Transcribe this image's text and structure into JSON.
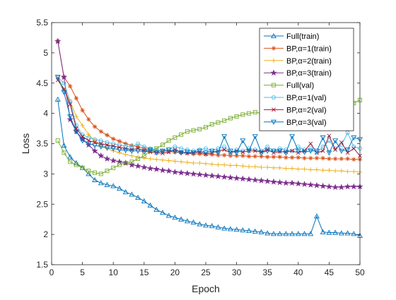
{
  "chart_data": {
    "type": "line",
    "title": "",
    "xlabel": "Epoch",
    "ylabel": "Loss",
    "xlim": [
      0,
      50
    ],
    "ylim": [
      1.5,
      5.5
    ],
    "xticks": [
      0,
      5,
      10,
      15,
      20,
      25,
      30,
      35,
      40,
      45,
      50
    ],
    "yticks": [
      1.5,
      2,
      2.5,
      3,
      3.5,
      4,
      4.5,
      5,
      5.5
    ],
    "x": [
      1,
      2,
      3,
      4,
      5,
      6,
      7,
      8,
      9,
      10,
      11,
      12,
      13,
      14,
      15,
      16,
      17,
      18,
      19,
      20,
      21,
      22,
      23,
      24,
      25,
      26,
      27,
      28,
      29,
      30,
      31,
      32,
      33,
      34,
      35,
      36,
      37,
      38,
      39,
      40,
      41,
      42,
      43,
      44,
      45,
      46,
      47,
      48,
      49,
      50
    ],
    "grid": false,
    "legend_position": "top-right",
    "series": [
      {
        "name": "Full(train)",
        "color": "#0072BD",
        "marker": "triangle-up",
        "values": [
          4.23,
          3.47,
          3.28,
          3.18,
          3.1,
          3.0,
          2.9,
          2.85,
          2.82,
          2.8,
          2.76,
          2.7,
          2.66,
          2.61,
          2.55,
          2.48,
          2.41,
          2.36,
          2.31,
          2.28,
          2.25,
          2.22,
          2.2,
          2.17,
          2.15,
          2.14,
          2.12,
          2.1,
          2.09,
          2.08,
          2.07,
          2.06,
          2.05,
          2.04,
          2.02,
          2.01,
          2.01,
          2.01,
          2.01,
          2.01,
          2.01,
          2.01,
          2.3,
          2.04,
          2.03,
          2.03,
          2.02,
          2.02,
          2.01,
          1.98
        ]
      },
      {
        "name": "BP,α=1(train)",
        "color": "#D95319",
        "marker": "asterisk",
        "values": [
          5.2,
          4.6,
          4.45,
          4.25,
          4.05,
          3.9,
          3.78,
          3.7,
          3.64,
          3.58,
          3.54,
          3.5,
          3.47,
          3.45,
          3.42,
          3.4,
          3.39,
          3.38,
          3.37,
          3.36,
          3.35,
          3.34,
          3.33,
          3.33,
          3.32,
          3.32,
          3.31,
          3.31,
          3.3,
          3.3,
          3.3,
          3.29,
          3.29,
          3.29,
          3.28,
          3.28,
          3.28,
          3.27,
          3.27,
          3.27,
          3.26,
          3.26,
          3.26,
          3.26,
          3.25,
          3.25,
          3.25,
          3.25,
          3.24,
          3.24
        ]
      },
      {
        "name": "BP,α=2(train)",
        "color": "#EDB120",
        "marker": "plus",
        "values": [
          4.6,
          4.4,
          4.2,
          3.95,
          3.8,
          3.65,
          3.55,
          3.47,
          3.42,
          3.38,
          3.35,
          3.32,
          3.3,
          3.28,
          3.26,
          3.25,
          3.24,
          3.23,
          3.22,
          3.21,
          3.2,
          3.19,
          3.18,
          3.18,
          3.17,
          3.16,
          3.15,
          3.15,
          3.14,
          3.14,
          3.13,
          3.12,
          3.12,
          3.11,
          3.11,
          3.1,
          3.1,
          3.09,
          3.09,
          3.08,
          3.08,
          3.07,
          3.07,
          3.06,
          3.06,
          3.05,
          3.05,
          3.04,
          3.04,
          3.03
        ]
      },
      {
        "name": "BP,α=3(train)",
        "color": "#7E2F8E",
        "marker": "pentagram",
        "values": [
          5.19,
          4.6,
          3.9,
          3.7,
          3.58,
          3.48,
          3.38,
          3.3,
          3.25,
          3.22,
          3.2,
          3.18,
          3.15,
          3.13,
          3.11,
          3.09,
          3.08,
          3.06,
          3.05,
          3.03,
          3.02,
          3.01,
          3.0,
          2.99,
          2.98,
          2.97,
          2.96,
          2.95,
          2.94,
          2.93,
          2.92,
          2.91,
          2.9,
          2.89,
          2.88,
          2.87,
          2.86,
          2.85,
          2.85,
          2.84,
          2.83,
          2.82,
          2.81,
          2.8,
          2.79,
          2.78,
          2.78,
          2.79,
          2.79,
          2.79
        ]
      },
      {
        "name": "Full(val)",
        "color": "#77AC30",
        "marker": "square",
        "values": [
          3.55,
          3.35,
          3.2,
          3.15,
          3.1,
          3.05,
          3.02,
          3.0,
          3.05,
          3.1,
          3.15,
          3.18,
          3.2,
          3.25,
          3.3,
          3.38,
          3.42,
          3.48,
          3.55,
          3.6,
          3.65,
          3.7,
          3.72,
          3.74,
          3.77,
          3.82,
          3.85,
          3.88,
          3.92,
          3.95,
          3.98,
          4.0,
          4.02,
          4.0,
          3.98,
          3.98,
          3.98,
          3.97,
          3.96,
          3.98,
          4.0,
          3.99,
          4.0,
          4.02,
          4.05,
          4.08,
          4.1,
          4.13,
          4.17,
          4.22
        ]
      },
      {
        "name": "BP,α=1(val)",
        "color": "#4DBEEE",
        "marker": "circle",
        "values": [
          4.6,
          4.5,
          4.2,
          3.8,
          3.65,
          3.6,
          3.57,
          3.55,
          3.52,
          3.5,
          3.48,
          3.46,
          3.45,
          3.5,
          3.45,
          3.42,
          3.4,
          3.38,
          3.4,
          3.45,
          3.42,
          3.4,
          3.38,
          3.4,
          3.42,
          3.38,
          3.42,
          3.45,
          3.35,
          3.4,
          3.38,
          3.42,
          3.4,
          3.38,
          3.45,
          3.38,
          3.42,
          3.4,
          3.38,
          3.45,
          3.4,
          3.42,
          3.35,
          3.45,
          3.55,
          3.42,
          3.48,
          3.68,
          3.45,
          3.42
        ]
      },
      {
        "name": "BP,α=2(val)",
        "color": "#A2142F",
        "marker": "x",
        "values": [
          4.55,
          4.4,
          4.15,
          3.75,
          3.62,
          3.55,
          3.52,
          3.5,
          3.48,
          3.46,
          3.44,
          3.42,
          3.4,
          3.42,
          3.38,
          3.36,
          3.35,
          3.34,
          3.36,
          3.4,
          3.36,
          3.34,
          3.35,
          3.36,
          3.33,
          3.35,
          3.38,
          3.4,
          3.35,
          3.38,
          3.36,
          3.38,
          3.38,
          3.36,
          3.4,
          3.35,
          3.37,
          3.36,
          3.38,
          3.35,
          3.38,
          3.5,
          3.35,
          3.38,
          3.63,
          3.4,
          3.52,
          3.35,
          3.42,
          3.3
        ]
      },
      {
        "name": "BP,α=3(val)",
        "color": "#0072BD",
        "marker": "triangle-down",
        "values": [
          4.6,
          4.35,
          3.95,
          3.7,
          3.55,
          3.5,
          3.47,
          3.45,
          3.43,
          3.42,
          3.4,
          3.39,
          3.38,
          3.38,
          3.37,
          3.4,
          3.35,
          3.38,
          3.4,
          3.37,
          3.35,
          3.36,
          3.35,
          3.38,
          3.35,
          3.38,
          3.35,
          3.62,
          3.38,
          3.35,
          3.55,
          3.38,
          3.62,
          3.35,
          3.38,
          3.38,
          3.38,
          3.35,
          3.62,
          3.38,
          3.36,
          3.38,
          3.38,
          3.6,
          3.35,
          3.55,
          3.38,
          3.4,
          3.6,
          3.57
        ]
      }
    ]
  }
}
